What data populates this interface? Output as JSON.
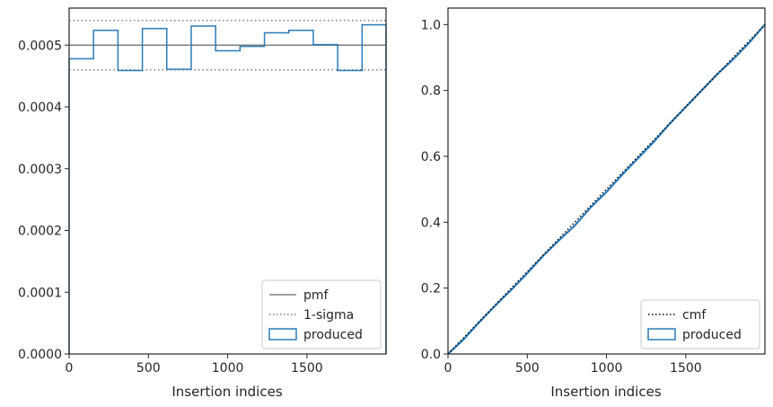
{
  "colors": {
    "produced": "#2b7bb9",
    "pmf": "#808080",
    "sigma": "#808080",
    "cmf": "#000000",
    "axis": "#262626"
  },
  "chart_data": [
    {
      "type": "step",
      "xlabel": "Insertion indices",
      "ylabel": "",
      "xlim": [
        0,
        1999
      ],
      "ylim": [
        0,
        0.00056
      ],
      "grid": false,
      "legend_position": "lower-right",
      "xticks": [
        0,
        500,
        1000,
        1500
      ],
      "xtick_labels": [
        "0",
        "500",
        "1000",
        "1500"
      ],
      "yticks": [
        0,
        0.0001,
        0.0002,
        0.0003,
        0.0004,
        0.0005
      ],
      "ytick_labels": [
        "0.0000",
        "0.0001",
        "0.0002",
        "0.0003",
        "0.0004",
        "0.0005"
      ],
      "pmf": 0.0005,
      "sigma_band": [
        0.00046,
        0.00054
      ],
      "bin_edges": [
        0,
        154,
        308,
        462,
        616,
        770,
        924,
        1078,
        1232,
        1386,
        1540,
        1694,
        1848,
        1999
      ],
      "values": [
        0.000478,
        0.000524,
        0.000459,
        0.000527,
        0.000461,
        0.000531,
        0.000491,
        0.000498,
        0.00052,
        0.000524,
        0.000501,
        0.000459,
        0.000533
      ],
      "legend": [
        {
          "key": "pmf",
          "label": "pmf",
          "style": "solid-line"
        },
        {
          "key": "sigma",
          "label": "1-sigma",
          "style": "dotted-line"
        },
        {
          "key": "produced",
          "label": "produced",
          "style": "box"
        }
      ]
    },
    {
      "type": "line",
      "xlabel": "Insertion indices",
      "ylabel": "",
      "xlim": [
        0,
        1999
      ],
      "ylim": [
        0,
        1.05
      ],
      "grid": false,
      "legend_position": "lower-right",
      "xticks": [
        0,
        500,
        1000,
        1500
      ],
      "xtick_labels": [
        "0",
        "500",
        "1000",
        "1500"
      ],
      "yticks": [
        0,
        0.2,
        0.4,
        0.6,
        0.8,
        1.0
      ],
      "ytick_labels": [
        "0.0",
        "0.2",
        "0.4",
        "0.6",
        "0.8",
        "1.0"
      ],
      "cmf": {
        "x": [
          0,
          1999
        ],
        "y": [
          0,
          1.0
        ]
      },
      "produced": {
        "x": [
          0,
          100,
          200,
          300,
          400,
          500,
          600,
          700,
          800,
          900,
          1000,
          1100,
          1200,
          1300,
          1400,
          1500,
          1600,
          1700,
          1800,
          1900,
          1999
        ],
        "y": [
          0,
          0.045,
          0.098,
          0.148,
          0.195,
          0.245,
          0.298,
          0.345,
          0.39,
          0.445,
          0.492,
          0.545,
          0.595,
          0.645,
          0.7,
          0.75,
          0.8,
          0.85,
          0.895,
          0.945,
          1.0
        ]
      },
      "legend": [
        {
          "key": "cmf",
          "label": "cmf",
          "style": "dotted-line"
        },
        {
          "key": "produced",
          "label": "produced",
          "style": "box"
        }
      ]
    }
  ]
}
